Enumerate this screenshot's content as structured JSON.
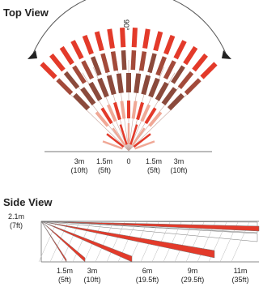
{
  "top_view": {
    "title": "Top View",
    "angle_label": "90°",
    "ticks": [
      {
        "main": "3m",
        "sub": "(10ft)"
      },
      {
        "main": "1.5m",
        "sub": "(5ft)"
      },
      {
        "main": "0",
        "sub": ""
      },
      {
        "main": "1.5m",
        "sub": "(5ft)"
      },
      {
        "main": "3m",
        "sub": "(10ft)"
      }
    ]
  },
  "side_view": {
    "title": "Side View",
    "height_label": {
      "main": "2.1m",
      "sub": "(7ft)"
    },
    "ticks": [
      {
        "main": "1.5m",
        "sub": "(5ft)"
      },
      {
        "main": "3m",
        "sub": "(10ft)"
      },
      {
        "main": "6m",
        "sub": "(19.5ft)"
      },
      {
        "main": "9m",
        "sub": "(29.5ft)"
      },
      {
        "main": "11m",
        "sub": "(35ft)"
      }
    ]
  },
  "colors": {
    "red": "#e33a2a",
    "brown": "#8b4a3c",
    "pale": "#f0a896",
    "line": "#555555"
  }
}
